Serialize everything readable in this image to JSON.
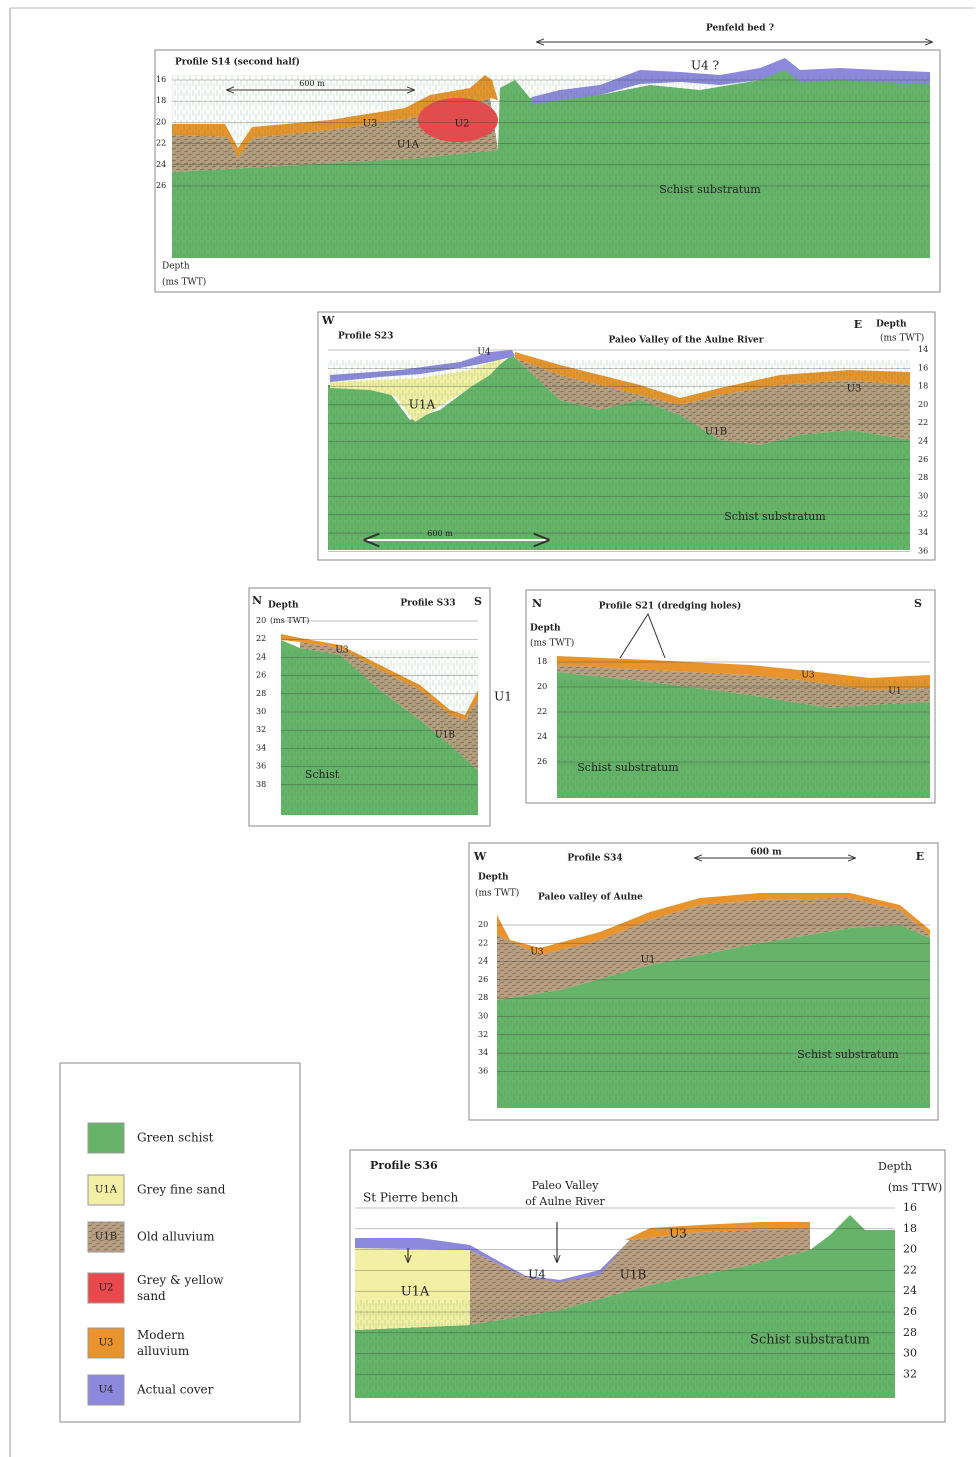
{
  "s14": {
    "title": "Profile S14 (second half)",
    "scale": "600 m",
    "note": "Penfeld bed ?",
    "depth": "Depth",
    "depth_unit": "(ms TWT)",
    "ticks": [
      "16",
      "18",
      "20",
      "22",
      "24",
      "26"
    ],
    "units": [
      "U4 ?",
      "U3",
      "U2",
      "U1A",
      "Schist substratum"
    ]
  },
  "s23": {
    "west": "W",
    "east": "E",
    "title": "Profile S23",
    "note": "Paleo Valley of the Aulne River",
    "depth": "Depth",
    "depth_unit": "(ms TWT)",
    "ticks": [
      "14",
      "16",
      "18",
      "20",
      "22",
      "24",
      "26",
      "28",
      "30",
      "32",
      "34",
      "36"
    ],
    "units": [
      "U4",
      "U1A",
      "U3",
      "U1B",
      "Schist substratum"
    ],
    "scale": "600 m"
  },
  "s33": {
    "north": "N",
    "south": "S",
    "depth": "Depth",
    "depth_unit": "(ms TWT)",
    "title": "Profile S33",
    "ticks": [
      "20",
      "22",
      "24",
      "26",
      "28",
      "30",
      "32",
      "34",
      "36",
      "38"
    ],
    "units": [
      "U3",
      "U1B",
      "Schist"
    ]
  },
  "s21": {
    "north": "N",
    "south": "S",
    "title": "Profile S21 (dredging holes)",
    "depth": "Depth",
    "depth_unit": "(ms TWT)",
    "ticks": [
      "18",
      "20",
      "22",
      "24",
      "26"
    ],
    "units": [
      "U3",
      "U1",
      "Schist substratum"
    ]
  },
  "s34": {
    "west": "W",
    "east": "E",
    "title": "Profile S34",
    "scale": "600 m",
    "depth": "Depth",
    "depth_unit": "(ms TWT)",
    "note": "Paleo valley of Aulne",
    "ticks": [
      "20",
      "22",
      "24",
      "26",
      "28",
      "30",
      "32",
      "34",
      "36"
    ],
    "units": [
      "U3",
      "U1",
      "Schist substratum"
    ]
  },
  "s36": {
    "title": "Profile S36",
    "site": "St Pierre bench",
    "note_lines": [
      "Paleo Valley",
      "of Aulne River"
    ],
    "depth": "Depth",
    "depth_unit": "(ms TTW)",
    "ticks": [
      "16",
      "18",
      "20",
      "22",
      "24",
      "26",
      "28",
      "30",
      "32"
    ],
    "units": [
      "U3",
      "U4",
      "U1B",
      "U1A",
      "Schist substratum"
    ]
  },
  "between_label": "U1",
  "legend": [
    {
      "label": "Green schist"
    },
    {
      "code": "U1A",
      "label": "Grey fine sand"
    },
    {
      "code": "U1B",
      "label": "Old alluvium"
    },
    {
      "code": "U2",
      "label": "Grey & yellow sand"
    },
    {
      "code": "U3",
      "label": "Modern alluvium"
    },
    {
      "code": "U4",
      "label": "Actual cover"
    }
  ]
}
